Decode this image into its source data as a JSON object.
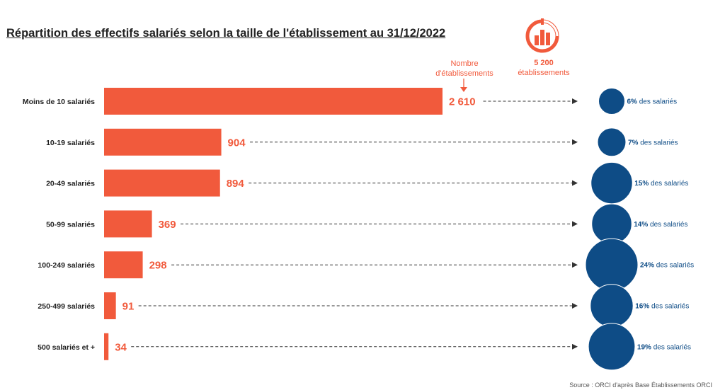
{
  "title": "Répartition des effectifs salariés selon la taille de l'établissement au 31/12/2022",
  "header": {
    "count_label_line1": "Nombre",
    "count_label_line2": "d'établissements",
    "total_value": "5 200",
    "total_label": "établissements"
  },
  "colors": {
    "bar": "#f15a3c",
    "bubble": "#0e4c86",
    "text": "#222222"
  },
  "logo_icon": "bar-chart-circle-icon",
  "source": "Source : ORCI d'après Base Établissements ORCI",
  "chart_data": {
    "type": "bar",
    "orientation": "horizontal",
    "categories": [
      "Moins de 10 salariés",
      "10-19 salariés",
      "20-49 salariés",
      "50-99 salariés",
      "100-249 salariés",
      "250-499 salariés",
      "500 salariés et +"
    ],
    "series": [
      {
        "name": "Nombre d'établissements",
        "values": [
          2610,
          904,
          894,
          369,
          298,
          91,
          34
        ],
        "labels": [
          "2 610",
          "904",
          "894",
          "369",
          "298",
          "91",
          "34"
        ]
      },
      {
        "name": "des salariés",
        "values": [
          6,
          7,
          15,
          14,
          24,
          16,
          19
        ],
        "unit": "%",
        "suffix": "des salariés",
        "marker": "bubble"
      }
    ]
  }
}
